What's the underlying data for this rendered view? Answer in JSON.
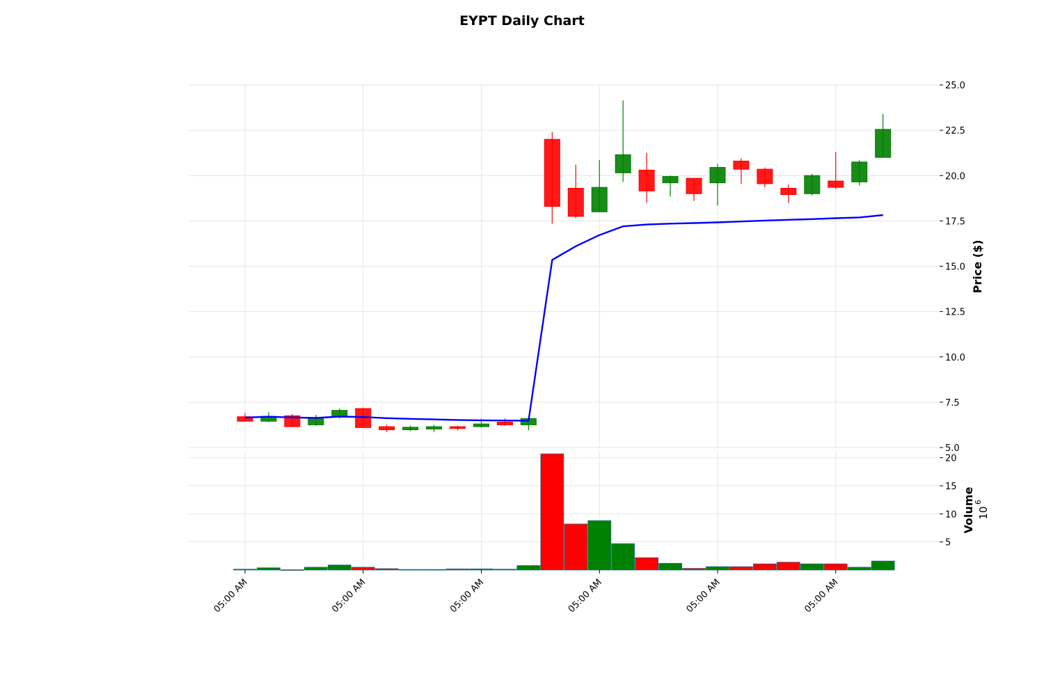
{
  "chart_data": {
    "type": "candlestick",
    "title": "EYPT Daily Chart",
    "ylabel": "Price ($)",
    "volume_label": "Volume",
    "volume_multiplier": "10",
    "volume_multiplier_exp": "6",
    "ylim": [
      5,
      25
    ],
    "volume_ylim": [
      0,
      21.2
    ],
    "y_ticks": [
      "5.0",
      "7.5",
      "10.0",
      "12.5",
      "15.0",
      "17.5",
      "20.0",
      "22.5",
      "25.0"
    ],
    "y_tick_values": [
      5,
      7.5,
      10,
      12.5,
      15,
      17.5,
      20,
      22.5,
      25
    ],
    "volume_ticks": [
      "5",
      "10",
      "15",
      "20"
    ],
    "volume_tick_values": [
      5,
      10,
      15,
      20
    ],
    "x_tick_labels": [
      "05:00 AM",
      "05:00 AM",
      "05:00 AM",
      "05:00 AM",
      "05:00 AM",
      "05:00 AM"
    ],
    "x_tick_positions": [
      0,
      5,
      10,
      15,
      20,
      25
    ],
    "colors": {
      "up": "#008000",
      "down": "#ff0000",
      "ma": "#0000ff",
      "grid": "#e6e6e6"
    },
    "grid": true,
    "candles": [
      {
        "o": 6.7,
        "h": 6.9,
        "l": 6.45,
        "c": 6.45,
        "v": 0.15
      },
      {
        "o": 6.45,
        "h": 6.95,
        "l": 6.4,
        "c": 6.72,
        "v": 0.4
      },
      {
        "o": 6.75,
        "h": 6.85,
        "l": 6.15,
        "c": 6.15,
        "v": 0.05
      },
      {
        "o": 6.25,
        "h": 6.8,
        "l": 6.2,
        "c": 6.65,
        "v": 0.5
      },
      {
        "o": 6.7,
        "h": 7.15,
        "l": 6.6,
        "c": 7.05,
        "v": 0.9
      },
      {
        "o": 7.15,
        "h": 7.2,
        "l": 6.1,
        "c": 6.1,
        "v": 0.5
      },
      {
        "o": 6.15,
        "h": 6.25,
        "l": 5.85,
        "c": 5.98,
        "v": 0.25
      },
      {
        "o": 5.98,
        "h": 6.2,
        "l": 5.9,
        "c": 6.12,
        "v": 0.1
      },
      {
        "o": 6.02,
        "h": 6.25,
        "l": 5.85,
        "c": 6.15,
        "v": 0.1
      },
      {
        "o": 6.15,
        "h": 6.2,
        "l": 5.95,
        "c": 6.05,
        "v": 0.2
      },
      {
        "o": 6.15,
        "h": 6.6,
        "l": 6.1,
        "c": 6.3,
        "v": 0.2
      },
      {
        "o": 6.4,
        "h": 6.6,
        "l": 6.2,
        "c": 6.25,
        "v": 0.15
      },
      {
        "o": 6.25,
        "h": 6.65,
        "l": 5.95,
        "c": 6.6,
        "v": 0.8
      },
      {
        "o": 22.0,
        "h": 22.4,
        "l": 17.35,
        "c": 18.3,
        "v": 20.7
      },
      {
        "o": 19.3,
        "h": 20.6,
        "l": 17.65,
        "c": 17.75,
        "v": 8.2
      },
      {
        "o": 18.0,
        "h": 20.85,
        "l": 18.0,
        "c": 19.35,
        "v": 8.8
      },
      {
        "o": 20.15,
        "h": 24.15,
        "l": 19.65,
        "c": 21.15,
        "v": 4.7
      },
      {
        "o": 20.3,
        "h": 21.25,
        "l": 18.5,
        "c": 19.15,
        "v": 2.2
      },
      {
        "o": 19.6,
        "h": 20.0,
        "l": 18.85,
        "c": 19.95,
        "v": 1.2
      },
      {
        "o": 19.85,
        "h": 19.85,
        "l": 18.6,
        "c": 19.0,
        "v": 0.3
      },
      {
        "o": 19.6,
        "h": 20.65,
        "l": 18.35,
        "c": 20.45,
        "v": 0.6
      },
      {
        "o": 20.8,
        "h": 20.95,
        "l": 19.55,
        "c": 20.35,
        "v": 0.6
      },
      {
        "o": 20.35,
        "h": 20.45,
        "l": 19.35,
        "c": 19.55,
        "v": 1.1
      },
      {
        "o": 19.3,
        "h": 19.5,
        "l": 18.5,
        "c": 18.95,
        "v": 1.4
      },
      {
        "o": 19.0,
        "h": 20.1,
        "l": 18.9,
        "c": 20.0,
        "v": 1.1
      },
      {
        "o": 19.7,
        "h": 21.3,
        "l": 19.25,
        "c": 19.35,
        "v": 1.1
      },
      {
        "o": 19.65,
        "h": 20.85,
        "l": 19.45,
        "c": 20.75,
        "v": 0.5
      },
      {
        "o": 21.0,
        "h": 23.4,
        "l": 21.0,
        "c": 22.55,
        "v": 1.6
      }
    ],
    "moving_average": [
      6.65,
      6.7,
      6.66,
      6.63,
      6.71,
      6.68,
      6.62,
      6.58,
      6.55,
      6.52,
      6.5,
      6.49,
      6.48,
      15.35,
      16.1,
      16.72,
      17.2,
      17.3,
      17.35,
      17.38,
      17.42,
      17.47,
      17.52,
      17.56,
      17.6,
      17.65,
      17.69,
      17.82
    ]
  }
}
